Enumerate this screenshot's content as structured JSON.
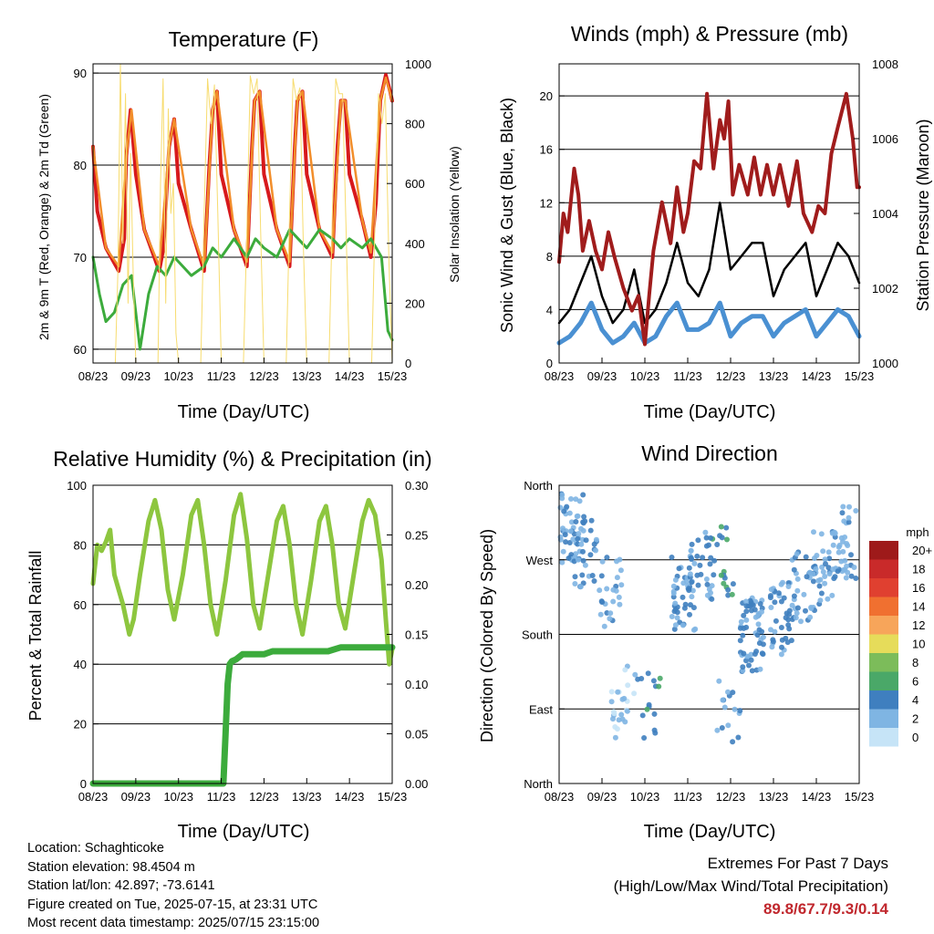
{
  "colors": {
    "temp_2m": "#d7191c",
    "temp_9m": "#f28e2b",
    "dewpoint": "#3cab3c",
    "solar": "#f7dc6f",
    "wind_sonic": "#4a90d2",
    "gust": "#000000",
    "pressure": "#a01c1c",
    "rh": "#8dc63f",
    "precip": "#3cab3c"
  },
  "info": {
    "location": "Location: Schaghticoke",
    "elevation": "Station elevation: 98.4504 m",
    "latlon": "Station lat/lon: 42.897; -73.6141",
    "created": "Figure created on Tue, 2025-07-15, at 23:31 UTC",
    "latest": "Most recent data timestamp: 2025/07/15 23:15:00"
  },
  "extremes": {
    "line1": "Extremes For Past 7 Days",
    "line2": "(High/Low/Max Wind/Total Precipitation)",
    "values": "89.8/67.7/9.3/0.14"
  },
  "chart_data": [
    {
      "id": "temperature",
      "type": "line",
      "title": "Temperature (F)",
      "xlabel": "Time (Day/UTC)",
      "ylabel": "2m & 9m T (Red, Orange) & 2m Td (Green)",
      "y2label": "Solar Insolation (Yellow)",
      "x_ticks": [
        "08/23",
        "09/23",
        "10/23",
        "11/23",
        "12/23",
        "13/23",
        "14/23",
        "15/23"
      ],
      "xlim": [
        0,
        7
      ],
      "ylim": [
        58.5,
        91
      ],
      "y_ticks": [
        60,
        70,
        80,
        90
      ],
      "y2lim": [
        0,
        1000
      ],
      "y2_ticks": [
        0,
        200,
        400,
        600,
        800,
        1000
      ],
      "series": [
        {
          "name": "2m T",
          "axis": "left",
          "color_key": "temp_2m",
          "x": [
            0,
            0.1,
            0.3,
            0.6,
            0.73,
            0.78,
            0.88,
            1.0,
            1.2,
            1.55,
            1.65,
            1.78,
            1.9,
            2.0,
            2.3,
            2.6,
            2.72,
            2.8,
            2.9,
            3.0,
            3.3,
            3.6,
            3.72,
            3.78,
            3.9,
            4.0,
            4.3,
            4.6,
            4.72,
            4.78,
            4.9,
            5.0,
            5.3,
            5.6,
            5.72,
            5.8,
            5.9,
            6.0,
            6.3,
            6.5,
            6.62,
            6.72,
            6.85,
            6.95,
            7.0
          ],
          "y": [
            82,
            75,
            71,
            68.5,
            72,
            81,
            86,
            79,
            73,
            68.5,
            71,
            82,
            85,
            78,
            73,
            68.5,
            80,
            86,
            88,
            79,
            73,
            69,
            82,
            87,
            88,
            79,
            73,
            69,
            82,
            87,
            88,
            79,
            73,
            70,
            82,
            87,
            87,
            79,
            74,
            70,
            76,
            87,
            89.8,
            88,
            87
          ]
        },
        {
          "name": "9m T",
          "axis": "left",
          "color_key": "temp_9m",
          "x": [
            0,
            0.3,
            0.6,
            0.78,
            0.9,
            1.2,
            1.55,
            1.78,
            1.9,
            2.3,
            2.6,
            2.8,
            2.9,
            3.3,
            3.6,
            3.78,
            3.9,
            4.3,
            4.6,
            4.78,
            4.9,
            5.3,
            5.6,
            5.8,
            5.9,
            6.3,
            6.5,
            6.72,
            6.85,
            7.0
          ],
          "y": [
            82,
            71,
            69,
            81,
            86,
            73,
            69,
            82,
            85,
            73,
            69,
            86,
            88,
            73,
            69.5,
            87,
            88,
            73,
            69.5,
            87,
            88,
            73,
            70.5,
            87,
            87,
            74,
            70.5,
            87,
            89.5,
            87
          ]
        },
        {
          "name": "2m Td",
          "axis": "left",
          "color_key": "dewpoint",
          "x": [
            0,
            0.15,
            0.3,
            0.5,
            0.7,
            0.9,
            1.1,
            1.3,
            1.5,
            1.7,
            1.9,
            2.1,
            2.3,
            2.6,
            2.8,
            3.0,
            3.3,
            3.6,
            3.8,
            4.0,
            4.3,
            4.6,
            4.8,
            5.0,
            5.3,
            5.6,
            5.8,
            6.0,
            6.3,
            6.5,
            6.75,
            6.9,
            7.0
          ],
          "y": [
            70,
            66,
            63,
            64,
            67,
            68,
            60,
            66,
            69,
            68,
            70,
            69,
            68,
            69,
            71,
            70,
            72,
            70,
            72,
            71,
            70,
            73,
            72,
            71,
            73,
            72,
            71,
            72,
            71,
            72,
            70,
            62,
            61
          ]
        },
        {
          "name": "Solar Insolation",
          "axis": "right",
          "color_key": "solar",
          "x": [
            0,
            0.52,
            0.58,
            0.64,
            0.7,
            0.76,
            0.82,
            0.88,
            0.94,
            1.0,
            1.52,
            1.58,
            1.64,
            1.7,
            1.76,
            1.82,
            1.88,
            1.94,
            2.0,
            2.52,
            2.6,
            2.68,
            2.76,
            2.84,
            2.92,
            3.0,
            3.52,
            3.6,
            3.68,
            3.76,
            3.84,
            3.92,
            4.0,
            4.52,
            4.6,
            4.68,
            4.76,
            4.84,
            4.92,
            5.0,
            5.52,
            5.6,
            5.68,
            5.76,
            5.84,
            5.92,
            6.0,
            6.52,
            6.6,
            6.68,
            6.76,
            6.84,
            6.92,
            7.0
          ],
          "y": [
            0,
            0,
            300,
            1000,
            400,
            900,
            200,
            700,
            300,
            0,
            0,
            600,
            950,
            200,
            850,
            500,
            600,
            100,
            0,
            0,
            500,
            950,
            800,
            930,
            500,
            0,
            0,
            450,
            960,
            900,
            950,
            450,
            0,
            0,
            500,
            950,
            880,
            920,
            400,
            0,
            0,
            500,
            950,
            900,
            900,
            450,
            0,
            0,
            500,
            900,
            800,
            900,
            350,
            0
          ]
        }
      ]
    },
    {
      "id": "winds",
      "type": "line",
      "title": "Winds (mph) & Pressure (mb)",
      "xlabel": "Time (Day/UTC)",
      "ylabel": "Sonic Wind & Gust (Blue, Black)",
      "y2label": "Station Pressure (Maroon)",
      "x_ticks": [
        "08/23",
        "09/23",
        "10/23",
        "11/23",
        "12/23",
        "13/23",
        "14/23",
        "15/23"
      ],
      "xlim": [
        0,
        7
      ],
      "ylim": [
        0,
        22.4
      ],
      "y_ticks": [
        0,
        4,
        8,
        12,
        16,
        20
      ],
      "y2lim": [
        1000,
        1008
      ],
      "y2_ticks": [
        1000,
        1002,
        1004,
        1006,
        1008
      ],
      "series": [
        {
          "name": "Sonic Wind",
          "axis": "left",
          "color_key": "wind_sonic",
          "x": [
            0,
            0.25,
            0.5,
            0.75,
            1.0,
            1.25,
            1.5,
            1.75,
            2.0,
            2.25,
            2.5,
            2.75,
            3.0,
            3.25,
            3.5,
            3.75,
            4.0,
            4.25,
            4.5,
            4.75,
            5.0,
            5.25,
            5.5,
            5.75,
            6.0,
            6.25,
            6.5,
            6.75,
            7.0
          ],
          "y": [
            1.5,
            2,
            3,
            4.5,
            2.5,
            1.5,
            2,
            3,
            1.5,
            2,
            3.5,
            4.5,
            2.5,
            2.5,
            3,
            4.5,
            2,
            3,
            3.5,
            3.5,
            2,
            3,
            3.5,
            4,
            2,
            3,
            4,
            3.5,
            2
          ]
        },
        {
          "name": "Gust",
          "axis": "left",
          "color_key": "gust",
          "x": [
            0,
            0.25,
            0.5,
            0.75,
            1.0,
            1.25,
            1.5,
            1.75,
            2.0,
            2.25,
            2.5,
            2.75,
            3.0,
            3.25,
            3.5,
            3.75,
            4.0,
            4.25,
            4.5,
            4.75,
            5.0,
            5.25,
            5.5,
            5.75,
            6.0,
            6.25,
            6.5,
            6.75,
            7.0
          ],
          "y": [
            3,
            4,
            6,
            8,
            5,
            3,
            4,
            7,
            3,
            4,
            6,
            9,
            6,
            5,
            7,
            12,
            7,
            8,
            9,
            9,
            5,
            7,
            8,
            9,
            5,
            7,
            9,
            8,
            6
          ]
        },
        {
          "name": "Station Pressure",
          "axis": "right",
          "color_key": "pressure",
          "x": [
            0,
            0.1,
            0.2,
            0.35,
            0.45,
            0.55,
            0.7,
            0.85,
            1.0,
            1.15,
            1.3,
            1.5,
            1.7,
            1.85,
            2.0,
            2.1,
            2.2,
            2.4,
            2.6,
            2.75,
            2.9,
            3.0,
            3.15,
            3.3,
            3.45,
            3.6,
            3.75,
            3.85,
            3.95,
            4.05,
            4.2,
            4.4,
            4.55,
            4.7,
            4.85,
            5.0,
            5.15,
            5.35,
            5.55,
            5.7,
            5.9,
            6.05,
            6.2,
            6.35,
            6.5,
            6.7,
            6.85,
            6.95,
            7.0
          ],
          "y": [
            1002.7,
            1004,
            1003.5,
            1005.2,
            1004.5,
            1003,
            1003.8,
            1003,
            1002.5,
            1003.5,
            1002.8,
            1002,
            1001.4,
            1001.8,
            1000.5,
            1001.8,
            1003,
            1004.3,
            1003.2,
            1004.7,
            1003.5,
            1004,
            1005.4,
            1005.2,
            1007.2,
            1005.2,
            1006.5,
            1006,
            1007,
            1004.5,
            1005.3,
            1004.5,
            1005.5,
            1004.5,
            1005.3,
            1004.5,
            1005.3,
            1004.2,
            1005.4,
            1004,
            1003.5,
            1004.2,
            1004,
            1005.6,
            1006.3,
            1007.2,
            1006,
            1004.7,
            1004.7
          ]
        }
      ]
    },
    {
      "id": "humidity",
      "type": "line",
      "title": "Relative Humidity (%) & Precipitation (in)",
      "xlabel": "Time (Day/UTC)",
      "ylabel": "Percent & Total Rainfall",
      "x_ticks": [
        "08/23",
        "09/23",
        "10/23",
        "11/23",
        "12/23",
        "13/23",
        "14/23",
        "15/23"
      ],
      "xlim": [
        0,
        7
      ],
      "ylim": [
        0,
        100
      ],
      "y_ticks": [
        0,
        20,
        40,
        60,
        80,
        100
      ],
      "y2lim": [
        0,
        0.3
      ],
      "y2_ticks": [
        "0.00",
        "0.05",
        "0.10",
        "0.15",
        "0.20",
        "0.25",
        "0.30"
      ],
      "series": [
        {
          "name": "Relative Humidity",
          "axis": "left",
          "color_key": "rh",
          "x": [
            0,
            0.1,
            0.2,
            0.3,
            0.4,
            0.5,
            0.7,
            0.85,
            0.95,
            1.1,
            1.3,
            1.45,
            1.6,
            1.75,
            1.9,
            2.1,
            2.3,
            2.45,
            2.6,
            2.75,
            2.9,
            3.1,
            3.3,
            3.45,
            3.6,
            3.75,
            3.9,
            4.1,
            4.3,
            4.45,
            4.6,
            4.75,
            4.9,
            5.1,
            5.3,
            5.45,
            5.6,
            5.75,
            5.9,
            6.1,
            6.3,
            6.45,
            6.6,
            6.75,
            6.85,
            6.93,
            7.0
          ],
          "y": [
            67,
            80,
            78,
            81,
            85,
            70,
            60,
            50,
            55,
            70,
            88,
            95,
            85,
            65,
            55,
            70,
            90,
            95,
            80,
            60,
            50,
            68,
            90,
            97,
            82,
            60,
            52,
            70,
            88,
            93,
            80,
            60,
            50,
            68,
            88,
            93,
            80,
            60,
            52,
            70,
            88,
            95,
            90,
            75,
            55,
            40,
            45
          ]
        },
        {
          "name": "Total Precipitation",
          "axis": "right",
          "color_key": "precip",
          "x": [
            0,
            2.8,
            3.05,
            3.1,
            3.15,
            3.2,
            3.25,
            3.35,
            3.5,
            4.0,
            4.2,
            5.5,
            5.8,
            7.0
          ],
          "y": [
            0,
            0,
            0,
            0.05,
            0.1,
            0.12,
            0.123,
            0.125,
            0.13,
            0.13,
            0.133,
            0.133,
            0.137,
            0.137
          ]
        }
      ]
    },
    {
      "id": "direction",
      "type": "scatter",
      "title": "Wind Direction",
      "xlabel": "Time (Day/UTC)",
      "ylabel": "Direction (Colored By Speed)",
      "x_ticks": [
        "08/23",
        "09/23",
        "10/23",
        "11/23",
        "12/23",
        "13/23",
        "14/23",
        "15/23"
      ],
      "xlim": [
        0,
        7
      ],
      "ylim": [
        0,
        360
      ],
      "y_ticks": [
        "North",
        "East",
        "South",
        "West",
        "North"
      ],
      "legend_title": "mph",
      "legend_labels": [
        "20+",
        "18",
        "16",
        "14",
        "12",
        "10",
        "8",
        "6",
        "4",
        "2",
        "0"
      ],
      "legend_colors": [
        "#9e1a1a",
        "#c92a2a",
        "#e04030",
        "#f07030",
        "#f7a55a",
        "#e6dc5a",
        "#7cbc5a",
        "#4aa868",
        "#3f7fbf",
        "#7fb5e3",
        "#c6e4f7"
      ],
      "clusters": [
        {
          "x": 0.3,
          "y": 310,
          "n": 50,
          "speed": 3
        },
        {
          "x": 0.6,
          "y": 280,
          "n": 30,
          "speed": 4
        },
        {
          "x": 1.2,
          "y": 230,
          "n": 25,
          "speed": 3
        },
        {
          "x": 1.5,
          "y": 100,
          "n": 25,
          "speed": 2
        },
        {
          "x": 2.1,
          "y": 100,
          "n": 15,
          "speed": 5
        },
        {
          "x": 2.9,
          "y": 230,
          "n": 45,
          "speed": 4
        },
        {
          "x": 3.3,
          "y": 260,
          "n": 30,
          "speed": 4
        },
        {
          "x": 3.8,
          "y": 270,
          "n": 20,
          "speed": 5
        },
        {
          "x": 3.95,
          "y": 90,
          "n": 15,
          "speed": 4
        },
        {
          "x": 4.5,
          "y": 180,
          "n": 60,
          "speed": 4
        },
        {
          "x": 5.2,
          "y": 200,
          "n": 40,
          "speed": 4
        },
        {
          "x": 5.7,
          "y": 240,
          "n": 35,
          "speed": 4
        },
        {
          "x": 6.2,
          "y": 260,
          "n": 30,
          "speed": 3
        },
        {
          "x": 6.65,
          "y": 290,
          "n": 40,
          "speed": 3
        }
      ]
    }
  ]
}
